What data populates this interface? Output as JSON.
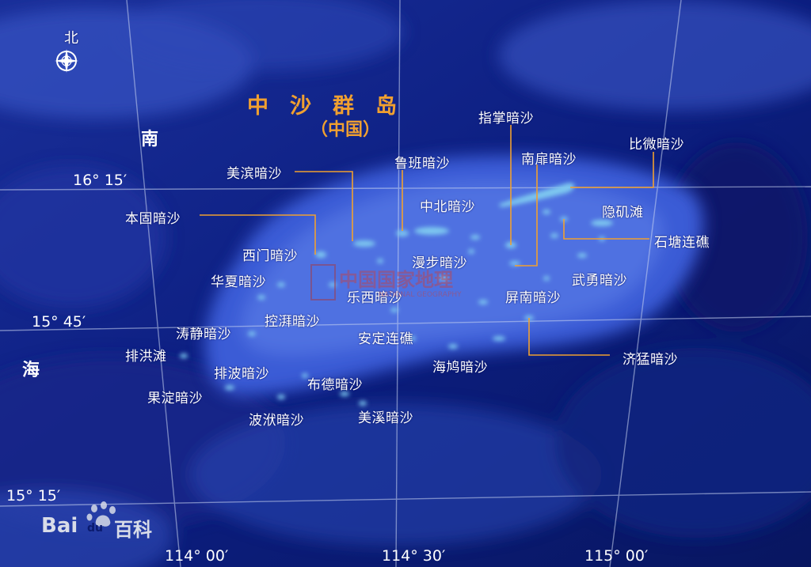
{
  "map": {
    "title": "中　沙　群　岛",
    "subtitle": "（中国）",
    "north_label": "北",
    "sea_name": [
      "南",
      "海"
    ],
    "colors": {
      "title": "#f0a030",
      "leader": "#f0a030",
      "reef": "#7ec8f0",
      "sea": "#0a1a6e"
    }
  },
  "coordinates": {
    "lat_16_15": "16° 15′",
    "lat_15_45": "15° 45′",
    "lat_15_15": "15° 15′",
    "lon_114_00": "114° 00′",
    "lon_114_30": "114° 30′",
    "lon_115_00": "115° 00′"
  },
  "features": {
    "zhizhang": "指掌暗沙",
    "luban": "鲁班暗沙",
    "nanfei": "南扉暗沙",
    "biwei": "比微暗沙",
    "meibin": "美滨暗沙",
    "zhongbei": "中北暗沙",
    "yinji": "隐矶滩",
    "bengu": "本固暗沙",
    "shitang": "石塘连礁",
    "ximen": "西门暗沙",
    "manbu": "漫步暗沙",
    "wuyong": "武勇暗沙",
    "huaxia": "华夏暗沙",
    "lexi": "乐西暗沙",
    "pingnan": "屏南暗沙",
    "kongpai": "控湃暗沙",
    "taojing": "涛静暗沙",
    "anding": "安定连礁",
    "paihong": "排洪滩",
    "jimeng": "济猛暗沙",
    "haijiu": "海鸠暗沙",
    "paibo": "排波暗沙",
    "bude": "布德暗沙",
    "guoding": "果淀暗沙",
    "bozhuang": "波洑暗沙",
    "meixi": "美溪暗沙"
  },
  "watermark": {
    "cn": "中国国家地理",
    "en": "NATIONAL GEOGRAPHY",
    "brand_bai": "Bai",
    "brand_du": "du",
    "brand_cn": "百科"
  }
}
